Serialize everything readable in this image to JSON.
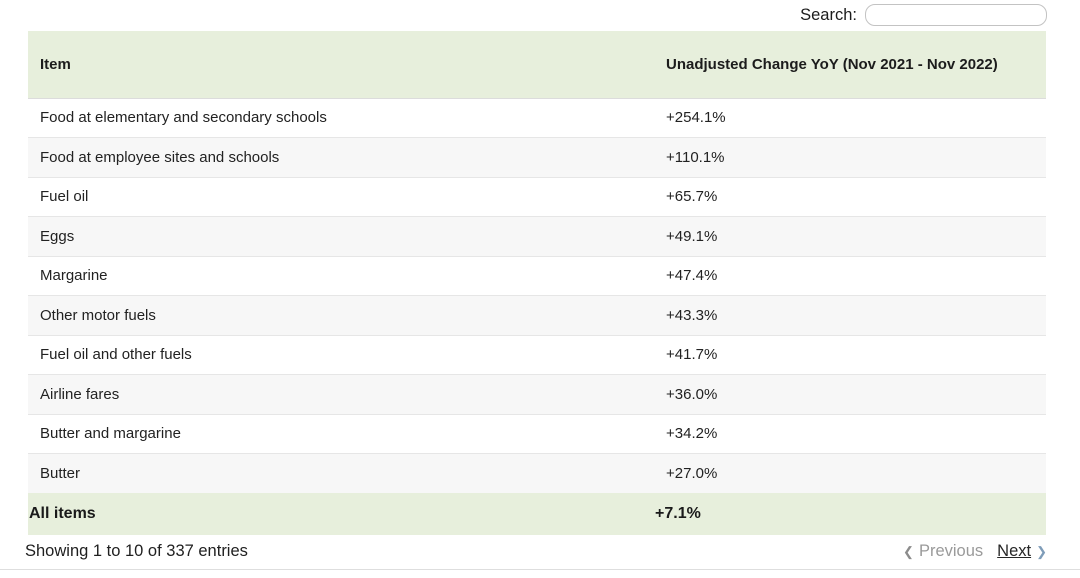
{
  "search": {
    "label": "Search:",
    "value": "",
    "placeholder": ""
  },
  "table": {
    "columns": [
      {
        "label": "Item"
      },
      {
        "label": "Unadjusted Change YoY (Nov 2021 - Nov 2022)"
      }
    ],
    "rows": [
      {
        "item": "Food at elementary and secondary schools",
        "change": "+254.1%"
      },
      {
        "item": "Food at employee sites and schools",
        "change": "+110.1%"
      },
      {
        "item": "Fuel oil",
        "change": "+65.7%"
      },
      {
        "item": "Eggs",
        "change": "+49.1%"
      },
      {
        "item": "Margarine",
        "change": "+47.4%"
      },
      {
        "item": "Other motor fuels",
        "change": "+43.3%"
      },
      {
        "item": "Fuel oil and other fuels",
        "change": "+41.7%"
      },
      {
        "item": "Airline fares",
        "change": "+36.0%"
      },
      {
        "item": "Butter and margarine",
        "change": "+34.2%"
      },
      {
        "item": "Butter",
        "change": "+27.0%"
      }
    ],
    "summary_row": {
      "item": "All items",
      "change": "+7.1%"
    }
  },
  "footer": {
    "info": "Showing 1 to 10 of 337 entries",
    "previous_label": "Previous",
    "next_label": "Next",
    "previous_icon": "❮",
    "next_icon": "❯"
  },
  "colors": {
    "header_green": "#e7efdc",
    "stripe_gray": "#f7f7f7",
    "next_arrow_blue": "#7f9db9",
    "disabled_gray": "#9a9a9a"
  }
}
